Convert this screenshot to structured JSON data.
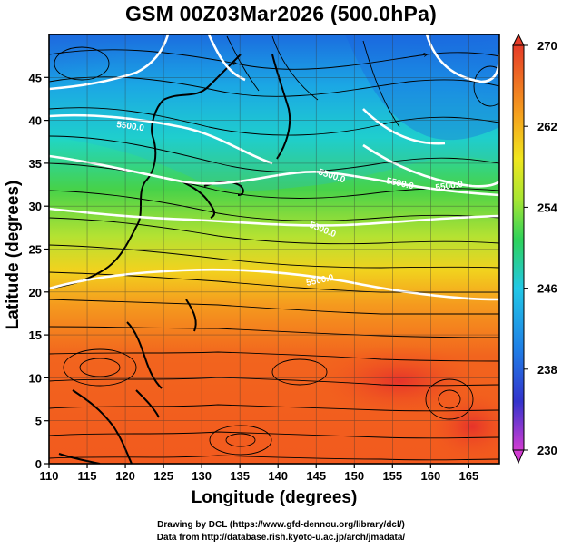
{
  "title": "GSM 00Z03Mar2026 (500.0hPa)",
  "xlabel": "Longitude (degrees)",
  "ylabel": "Latitude  (degrees)",
  "credits": [
    "Drawing by DCL (https://www.gfd-dennou.org/library/dcl/)",
    "Data from http://database.rish.kyoto-u.ac.jp/arch/jmadata/"
  ],
  "contour_label": "5500.0",
  "contour_labels": [
    "5500.0",
    "5500.0",
    "5500.0",
    "5500.0",
    "5500.0",
    "5500.0"
  ],
  "map": {
    "lon_range": [
      110,
      169
    ],
    "lat_range": [
      0,
      50
    ],
    "x_ticks": [
      "110",
      "115",
      "120",
      "125",
      "130",
      "135",
      "140",
      "145",
      "150",
      "155",
      "160",
      "165"
    ],
    "y_ticks": [
      "0",
      "5",
      "10",
      "15",
      "20",
      "25",
      "30",
      "35",
      "40",
      "45"
    ]
  },
  "colorbar": {
    "range": [
      230,
      270
    ],
    "labels": [
      "270",
      "262",
      "254",
      "246",
      "238",
      "230"
    ],
    "colors": [
      "#d23cd2",
      "#3333cc",
      "#1f7fe6",
      "#22c8e6",
      "#2ed25a",
      "#a8e632",
      "#f0e61e",
      "#f5a01e",
      "#f05a1e",
      "#e63c28"
    ]
  }
}
